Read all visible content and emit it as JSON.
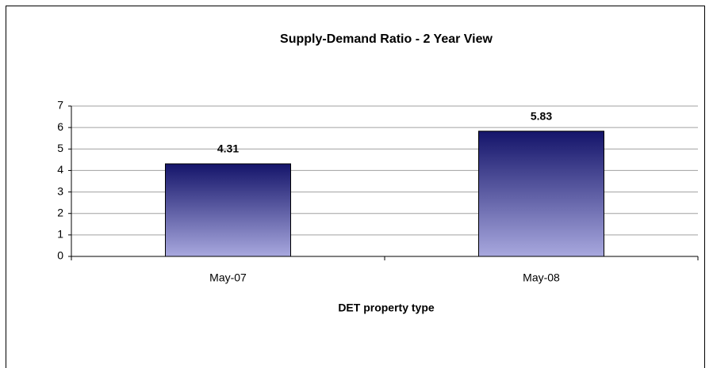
{
  "chart_data": {
    "type": "bar",
    "title": "Supply-Demand Ratio - 2 Year View",
    "x_label": "DET property type",
    "categories": [
      "May-07",
      "May-08"
    ],
    "values": [
      4.31,
      5.83
    ],
    "color": [
      "#14146a",
      "#a8a8de"
    ],
    "ylim": [
      0,
      7
    ],
    "yticks": [
      0,
      1,
      2,
      3,
      4,
      5,
      6,
      7
    ],
    "grid": true
  }
}
